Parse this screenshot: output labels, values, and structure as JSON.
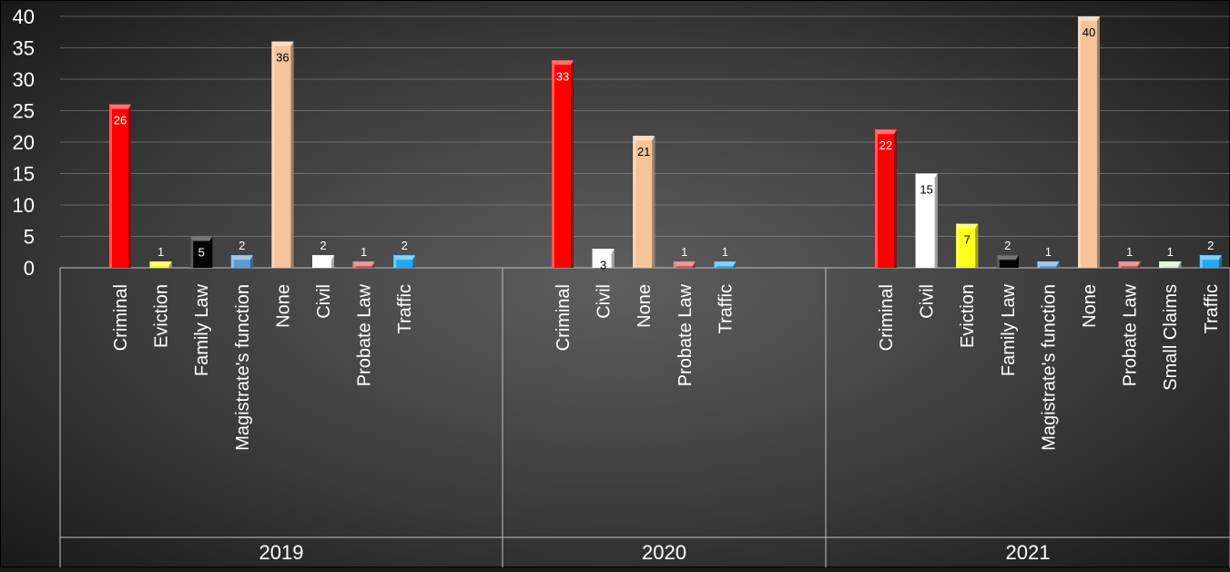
{
  "chart_data": {
    "type": "bar",
    "ylim": [
      0,
      40
    ],
    "yticks": [
      0,
      5,
      10,
      15,
      20,
      25,
      30,
      35,
      40
    ],
    "grid": true,
    "legend": "none",
    "colors": {
      "Criminal": "#ff0000",
      "Eviction": "#ffff1a",
      "Family Law": "#050505",
      "Magistrate's function": "#5b9bd5",
      "None": "#f6c39a",
      "Civil": "#ffffff",
      "Probate Law": "#d24b4b",
      "Traffic": "#1eaaf1",
      "Small Claims": "#d9ecc8"
    },
    "groups": [
      {
        "year": "2019",
        "bars": [
          {
            "category": "Criminal",
            "value": 26
          },
          {
            "category": "Eviction",
            "value": 1
          },
          {
            "category": "Family Law",
            "value": 5
          },
          {
            "category": "Magistrate's function",
            "value": 2
          },
          {
            "category": "None",
            "value": 36
          },
          {
            "category": "Civil",
            "value": 2
          },
          {
            "category": "Probate Law",
            "value": 1
          },
          {
            "category": "Traffic",
            "value": 2
          }
        ]
      },
      {
        "year": "2020",
        "bars": [
          {
            "category": "Criminal",
            "value": 33
          },
          {
            "category": "Civil",
            "value": 3
          },
          {
            "category": "None",
            "value": 21
          },
          {
            "category": "Probate Law",
            "value": 1
          },
          {
            "category": "Traffic",
            "value": 1
          }
        ]
      },
      {
        "year": "2021",
        "bars": [
          {
            "category": "Criminal",
            "value": 22
          },
          {
            "category": "Civil",
            "value": 15
          },
          {
            "category": "Eviction",
            "value": 7
          },
          {
            "category": "Family Law",
            "value": 2
          },
          {
            "category": "Magistrate's function",
            "value": 1
          },
          {
            "category": "None",
            "value": 40
          },
          {
            "category": "Probate Law",
            "value": 1
          },
          {
            "category": "Small Claims",
            "value": 1
          },
          {
            "category": "Traffic",
            "value": 2
          }
        ]
      }
    ]
  }
}
